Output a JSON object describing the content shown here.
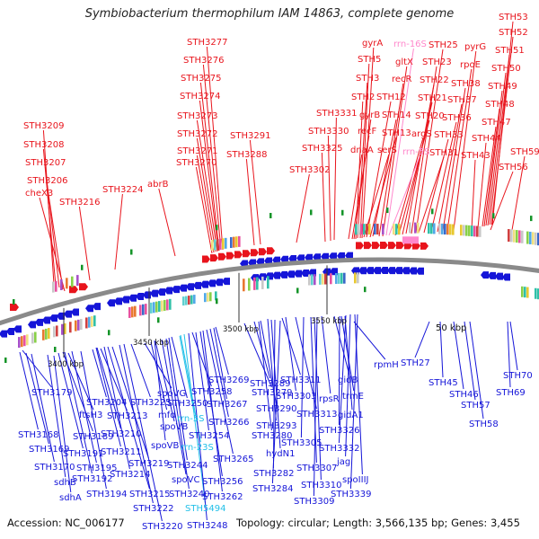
{
  "title": "Symbiobacterium thermophilum IAM 14863, complete genome",
  "footer": {
    "accession": "Accession: NC_006177",
    "topology": "Topology: circular; Length: 3,566,135 bp; Genes: 3,455"
  },
  "colors": {
    "forward_gene": "#e8141c",
    "reverse_gene": "#1515d8",
    "rrna": "#ff88cc",
    "trna": "#22c0e8",
    "backbone": "#888888",
    "marker": "#149428"
  },
  "scale_labels": [
    "3400 kbp",
    "3450 kbp",
    "3500 kbp",
    "3550 kbp",
    "50 kbp"
  ],
  "top_labels": [
    {
      "text": "STH53",
      "color": "red"
    },
    {
      "text": "STH52",
      "color": "red"
    },
    {
      "text": "STH51",
      "color": "red"
    },
    {
      "text": "STH50",
      "color": "red"
    },
    {
      "text": "STH49",
      "color": "red"
    },
    {
      "text": "STH48",
      "color": "red"
    },
    {
      "text": "STH47",
      "color": "red"
    },
    {
      "text": "STH44",
      "color": "red"
    },
    {
      "text": "STH43",
      "color": "red"
    },
    {
      "text": "STH56",
      "color": "red"
    },
    {
      "text": "STH59",
      "color": "red"
    },
    {
      "text": "pyrG",
      "color": "red"
    },
    {
      "text": "rpoE",
      "color": "red"
    },
    {
      "text": "STH38",
      "color": "red"
    },
    {
      "text": "STH37",
      "color": "red"
    },
    {
      "text": "STH36",
      "color": "red"
    },
    {
      "text": "STH33",
      "color": "red"
    },
    {
      "text": "STH31",
      "color": "red"
    },
    {
      "text": "STH25",
      "color": "red"
    },
    {
      "text": "STH23",
      "color": "red"
    },
    {
      "text": "STH22",
      "color": "red"
    },
    {
      "text": "STH21",
      "color": "red"
    },
    {
      "text": "STH20",
      "color": "red"
    },
    {
      "text": "argS",
      "color": "red"
    },
    {
      "text": "rrn-5S",
      "color": "pink"
    },
    {
      "text": "rrn-16S",
      "color": "pink"
    },
    {
      "text": "gltX",
      "color": "red"
    },
    {
      "text": "recR",
      "color": "red"
    },
    {
      "text": "STH14",
      "color": "red"
    },
    {
      "text": "STH13",
      "color": "red"
    },
    {
      "text": "STH12",
      "color": "red"
    },
    {
      "text": "serS",
      "color": "red"
    },
    {
      "text": "gyrA",
      "color": "red"
    },
    {
      "text": "STH5",
      "color": "red"
    },
    {
      "text": "STH3",
      "color": "red"
    },
    {
      "text": "STH2",
      "color": "red"
    },
    {
      "text": "gyrB",
      "color": "red"
    },
    {
      "text": "recF",
      "color": "red"
    },
    {
      "text": "dnaA",
      "color": "red"
    },
    {
      "text": "STH3331",
      "color": "red"
    },
    {
      "text": "STH3330",
      "color": "red"
    },
    {
      "text": "STH3325",
      "color": "red"
    },
    {
      "text": "STH3302",
      "color": "red"
    },
    {
      "text": "STH3291",
      "color": "red"
    },
    {
      "text": "STH3288",
      "color": "red"
    },
    {
      "text": "STH3277",
      "color": "red"
    },
    {
      "text": "STH3276",
      "color": "red"
    },
    {
      "text": "STH3275",
      "color": "red"
    },
    {
      "text": "STH3274",
      "color": "red"
    },
    {
      "text": "STH3273",
      "color": "red"
    },
    {
      "text": "STH3272",
      "color": "red"
    },
    {
      "text": "STH3271",
      "color": "red"
    },
    {
      "text": "STH3270",
      "color": "red"
    },
    {
      "text": "abrB",
      "color": "red"
    },
    {
      "text": "STH3224",
      "color": "red"
    },
    {
      "text": "STH3216",
      "color": "red"
    },
    {
      "text": "STH3209",
      "color": "red"
    },
    {
      "text": "STH3208",
      "color": "red"
    },
    {
      "text": "STH3207",
      "color": "red"
    },
    {
      "text": "STH3206",
      "color": "red"
    },
    {
      "text": "cheX3",
      "color": "red"
    }
  ],
  "bottom_labels": [
    {
      "text": "rpmH",
      "color": "blue"
    },
    {
      "text": "STH27",
      "color": "blue"
    },
    {
      "text": "50 kbp",
      "color": "black"
    },
    {
      "text": "STH45",
      "color": "blue"
    },
    {
      "text": "STH46",
      "color": "blue"
    },
    {
      "text": "STH57",
      "color": "blue"
    },
    {
      "text": "STH58",
      "color": "blue"
    },
    {
      "text": "STH70",
      "color": "blue"
    },
    {
      "text": "STH69",
      "color": "blue"
    },
    {
      "text": "STH3179",
      "color": "blue"
    },
    {
      "text": "STH3168",
      "color": "blue"
    },
    {
      "text": "STH3169",
      "color": "blue"
    },
    {
      "text": "STH3170",
      "color": "blue"
    },
    {
      "text": "sdhB",
      "color": "blue"
    },
    {
      "text": "sdhA",
      "color": "blue"
    },
    {
      "text": "ftsH3",
      "color": "blue"
    },
    {
      "text": "STH3189",
      "color": "blue"
    },
    {
      "text": "STH3191",
      "color": "blue"
    },
    {
      "text": "STH3192",
      "color": "blue"
    },
    {
      "text": "STH3195",
      "color": "blue"
    },
    {
      "text": "STH3194",
      "color": "blue"
    },
    {
      "text": "STH3204",
      "color": "blue"
    },
    {
      "text": "STH3213",
      "color": "blue"
    },
    {
      "text": "STH3210",
      "color": "blue"
    },
    {
      "text": "STH3211",
      "color": "blue"
    },
    {
      "text": "STH3214",
      "color": "blue"
    },
    {
      "text": "STH3215",
      "color": "blue"
    },
    {
      "text": "STH3219",
      "color": "blue"
    },
    {
      "text": "STH3222",
      "color": "blue"
    },
    {
      "text": "STH3220",
      "color": "blue"
    },
    {
      "text": "STH3225",
      "color": "blue"
    },
    {
      "text": "spoVG",
      "color": "blue"
    },
    {
      "text": "mfd",
      "color": "blue"
    },
    {
      "text": "spoVB",
      "color": "blue"
    },
    {
      "text": "spoVB",
      "color": "blue"
    },
    {
      "text": "spoVC",
      "color": "blue"
    },
    {
      "text": "STH3240",
      "color": "blue"
    },
    {
      "text": "STH3244",
      "color": "blue"
    },
    {
      "text": "STH3250",
      "color": "blue"
    },
    {
      "text": "rrn-5S",
      "color": "cyan"
    },
    {
      "text": "rrn-23S",
      "color": "cyan"
    },
    {
      "text": "STH5494",
      "color": "cyan"
    },
    {
      "text": "STH3248",
      "color": "blue"
    },
    {
      "text": "STH3258",
      "color": "blue"
    },
    {
      "text": "STH3254",
      "color": "blue"
    },
    {
      "text": "STH3256",
      "color": "blue"
    },
    {
      "text": "STH3262",
      "color": "blue"
    },
    {
      "text": "STH3265",
      "color": "blue"
    },
    {
      "text": "STH3266",
      "color": "blue"
    },
    {
      "text": "STH3267",
      "color": "blue"
    },
    {
      "text": "STH3269",
      "color": "blue"
    },
    {
      "text": "STH3279",
      "color": "blue"
    },
    {
      "text": "STH3289",
      "color": "blue"
    },
    {
      "text": "STH3290",
      "color": "blue"
    },
    {
      "text": "STH3280",
      "color": "blue"
    },
    {
      "text": "STH3293",
      "color": "blue"
    },
    {
      "text": "hydN1",
      "color": "blue"
    },
    {
      "text": "STH3282",
      "color": "blue"
    },
    {
      "text": "STH3284",
      "color": "blue"
    },
    {
      "text": "STH3311",
      "color": "blue"
    },
    {
      "text": "STH3303",
      "color": "blue"
    },
    {
      "text": "STH3313",
      "color": "blue"
    },
    {
      "text": "STH3305",
      "color": "blue"
    },
    {
      "text": "STH3307",
      "color": "blue"
    },
    {
      "text": "STH3310",
      "color": "blue"
    },
    {
      "text": "STH3309",
      "color": "blue"
    },
    {
      "text": "rpsR",
      "color": "blue"
    },
    {
      "text": "gidB",
      "color": "blue"
    },
    {
      "text": "trmE",
      "color": "blue"
    },
    {
      "text": "gidA1",
      "color": "blue"
    },
    {
      "text": "STH3326",
      "color": "blue"
    },
    {
      "text": "STH3332",
      "color": "blue"
    },
    {
      "text": "jag",
      "color": "blue"
    },
    {
      "text": "spoIIIJ",
      "color": "blue"
    },
    {
      "text": "STH3339",
      "color": "blue"
    }
  ]
}
